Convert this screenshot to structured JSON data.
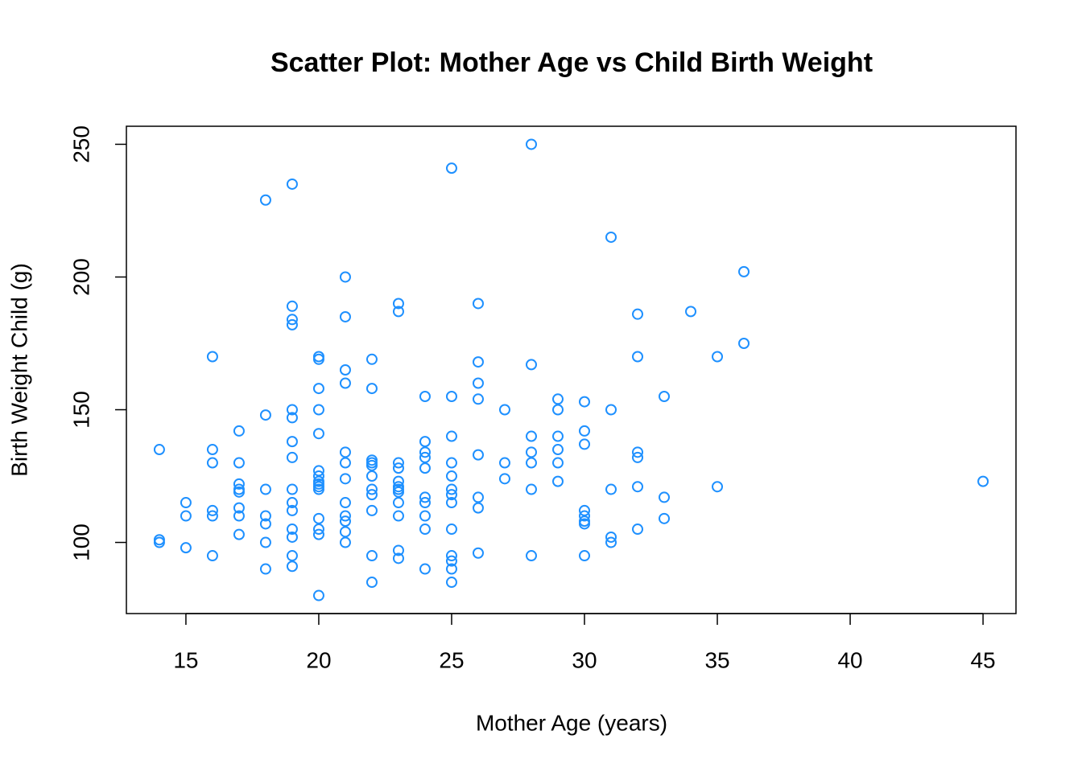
{
  "chart_data": {
    "type": "scatter",
    "title": "Scatter Plot: Mother Age vs Child Birth Weight",
    "x_label": "Mother Age (years)",
    "y_label": "Birth Weight Child (g)",
    "color": "#1e90ff",
    "xlim": [
      12.76,
      46.24
    ],
    "ylim": [
      73.2,
      256.8
    ],
    "xticks": [
      15,
      20,
      25,
      30,
      35,
      40,
      45
    ],
    "yticks": [
      100,
      150,
      200,
      250
    ],
    "x": [
      14,
      14,
      14,
      15,
      15,
      15,
      16,
      16,
      16,
      16,
      16,
      16,
      17,
      17,
      17,
      17,
      17,
      17,
      17,
      17,
      18,
      18,
      18,
      18,
      18,
      18,
      18,
      19,
      19,
      19,
      19,
      19,
      19,
      19,
      19,
      19,
      19,
      19,
      19,
      19,
      19,
      19,
      20,
      20,
      20,
      20,
      20,
      20,
      20,
      20,
      20,
      20,
      20,
      20,
      20,
      20,
      20,
      21,
      21,
      21,
      21,
      21,
      21,
      21,
      21,
      21,
      21,
      21,
      21,
      22,
      22,
      22,
      22,
      22,
      22,
      22,
      22,
      22,
      22,
      22,
      23,
      23,
      23,
      23,
      23,
      23,
      23,
      23,
      23,
      23,
      23,
      23,
      24,
      24,
      24,
      24,
      24,
      24,
      24,
      24,
      24,
      24,
      25,
      25,
      25,
      25,
      25,
      25,
      25,
      25,
      25,
      25,
      25,
      25,
      25,
      26,
      26,
      26,
      26,
      26,
      26,
      26,
      26,
      27,
      27,
      27,
      28,
      28,
      28,
      28,
      28,
      28,
      28,
      29,
      29,
      29,
      29,
      29,
      29,
      30,
      30,
      30,
      30,
      30,
      30,
      30,
      30,
      31,
      31,
      31,
      31,
      31,
      32,
      32,
      32,
      32,
      32,
      32,
      33,
      33,
      33,
      34,
      35,
      35,
      36,
      36,
      45
    ],
    "y": [
      135,
      101,
      100,
      115,
      110,
      98,
      170,
      135,
      130,
      112,
      110,
      95,
      142,
      130,
      122,
      120,
      119,
      113,
      110,
      103,
      229,
      148,
      120,
      110,
      107,
      100,
      90,
      235,
      189,
      184,
      182,
      150,
      147,
      138,
      132,
      120,
      115,
      112,
      105,
      102,
      95,
      91,
      170,
      169,
      158,
      150,
      141,
      127,
      125,
      123,
      122,
      121,
      120,
      109,
      105,
      103,
      80,
      200,
      185,
      165,
      160,
      134,
      130,
      124,
      115,
      110,
      108,
      104,
      100,
      169,
      158,
      131,
      130,
      129,
      125,
      120,
      118,
      112,
      95,
      85,
      190,
      187,
      130,
      128,
      123,
      121,
      120,
      119,
      115,
      110,
      97,
      94,
      155,
      138,
      134,
      132,
      128,
      117,
      115,
      110,
      105,
      90,
      241,
      155,
      140,
      130,
      125,
      120,
      118,
      115,
      105,
      95,
      93,
      90,
      85,
      190,
      168,
      160,
      154,
      133,
      117,
      113,
      96,
      150,
      130,
      124,
      250,
      167,
      140,
      134,
      130,
      120,
      95,
      154,
      150,
      140,
      135,
      130,
      123,
      153,
      142,
      137,
      112,
      110,
      108,
      107,
      95,
      215,
      150,
      120,
      102,
      100,
      186,
      170,
      134,
      132,
      121,
      105,
      155,
      117,
      109,
      187,
      170,
      121,
      202,
      175,
      123
    ]
  }
}
